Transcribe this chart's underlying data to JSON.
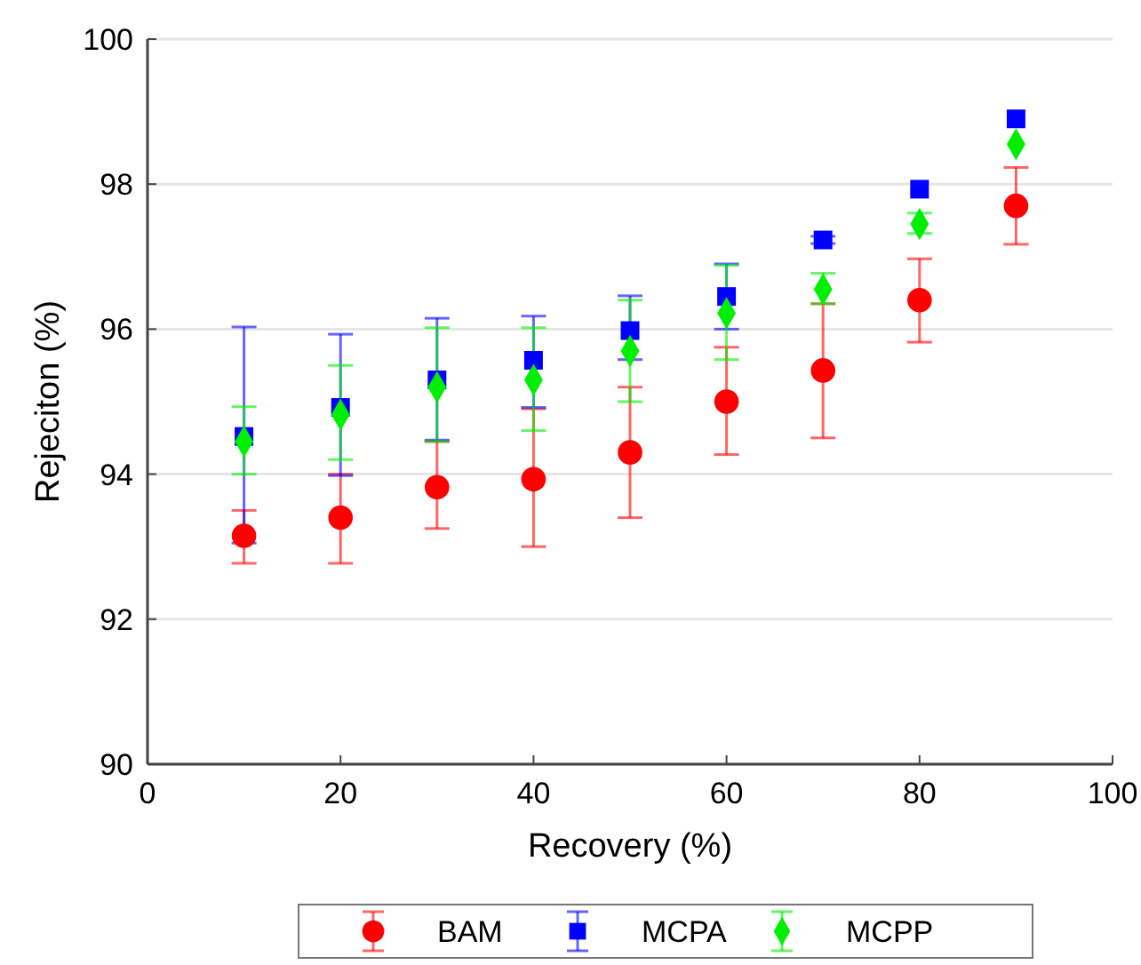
{
  "chart_data": {
    "type": "scatter",
    "xlabel": "Recovery (%)",
    "ylabel": "Rejeciton (%)",
    "x": [
      10,
      20,
      30,
      40,
      50,
      60,
      70,
      80,
      90
    ],
    "xlim": [
      0,
      100
    ],
    "xticks": [
      0,
      20,
      40,
      60,
      80,
      100
    ],
    "ylim": [
      90,
      100
    ],
    "yticks": [
      90,
      92,
      94,
      96,
      98,
      100
    ],
    "grid": "y",
    "legend": "bottom",
    "series": [
      {
        "name": "BAM",
        "color": "#ff0000",
        "marker": "circle",
        "values": [
          93.15,
          93.4,
          93.82,
          93.93,
          94.3,
          95.0,
          95.43,
          96.4,
          97.7
        ],
        "errors": [
          [
            92.77,
            93.5
          ],
          [
            92.77,
            94.0
          ],
          [
            93.25,
            94.45
          ],
          [
            93.0,
            94.9
          ],
          [
            93.4,
            95.2
          ],
          [
            94.27,
            95.75
          ],
          [
            94.5,
            96.35
          ],
          [
            95.82,
            96.97
          ],
          [
            97.17,
            98.23
          ]
        ]
      },
      {
        "name": "MCPA",
        "color": "#0000ff",
        "marker": "square",
        "values": [
          94.52,
          94.92,
          95.3,
          95.57,
          95.98,
          96.45,
          97.23,
          97.93,
          98.9
        ],
        "errors": [
          [
            93.05,
            96.03
          ],
          [
            93.98,
            95.93
          ],
          [
            94.47,
            96.15
          ],
          [
            94.92,
            96.18
          ],
          [
            95.58,
            96.46
          ],
          [
            96.0,
            96.9
          ],
          [
            97.18,
            97.28
          ],
          null,
          null
        ]
      },
      {
        "name": "MCPP",
        "color": "#00ee00",
        "marker": "diamond",
        "values": [
          94.45,
          94.82,
          95.2,
          95.3,
          95.7,
          96.22,
          96.55,
          97.45,
          98.55
        ],
        "errors": [
          [
            94.0,
            94.93
          ],
          [
            94.2,
            95.5
          ],
          [
            94.45,
            96.02
          ],
          [
            94.6,
            96.02
          ],
          [
            95.0,
            96.4
          ],
          [
            95.58,
            96.88
          ],
          [
            96.35,
            96.77
          ],
          [
            97.32,
            97.6
          ],
          null
        ]
      }
    ]
  }
}
